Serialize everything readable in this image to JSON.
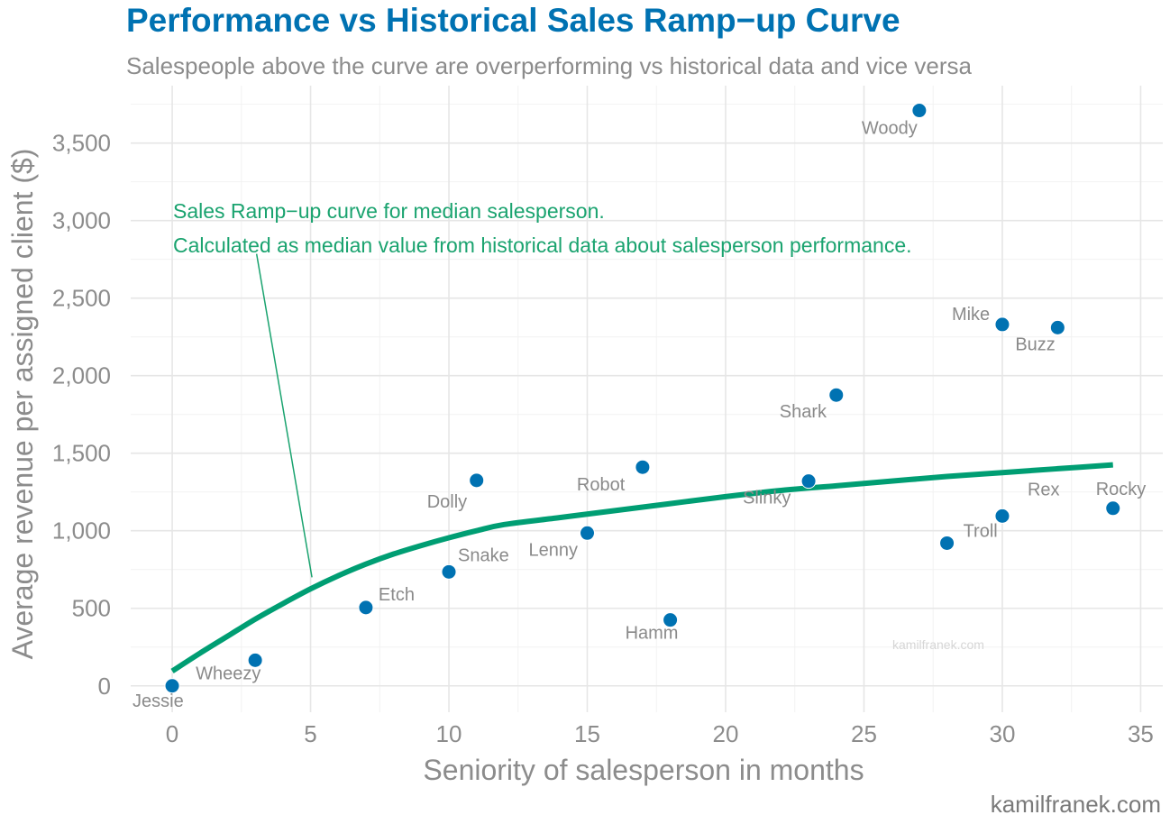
{
  "chart_data": {
    "type": "scatter",
    "title": "Performance vs Historical Sales Ramp−up Curve",
    "subtitle": "Salespeople above the curve are overperforming vs historical data and vice versa",
    "xlabel": "Seniority of salesperson in months",
    "ylabel": "Average revenue per assigned client ($)",
    "xlim": [
      -1.5,
      35.8
    ],
    "ylim": [
      -170,
      3870
    ],
    "x_ticks": [
      0,
      5,
      10,
      15,
      20,
      25,
      30,
      35
    ],
    "x_tick_labels": [
      "0",
      "5",
      "10",
      "15",
      "20",
      "25",
      "30",
      "35"
    ],
    "y_ticks": [
      0,
      500,
      1000,
      1500,
      2000,
      2500,
      3000,
      3500
    ],
    "y_tick_labels": [
      "0",
      "500",
      "1,000",
      "1,500",
      "2,000",
      "2,500",
      "3,000",
      "3,500"
    ],
    "grid": true,
    "colors": {
      "title": "#0072B2",
      "points": "#0072B2",
      "curve": "#009E73",
      "annotation": "#1aa36f",
      "text_gray": "#8c8c8c"
    },
    "points": [
      {
        "name": "Jessie",
        "x": 0,
        "y": 0
      },
      {
        "name": "Wheezy",
        "x": 3,
        "y": 165
      },
      {
        "name": "Etch",
        "x": 7,
        "y": 505
      },
      {
        "name": "Snake",
        "x": 10,
        "y": 735
      },
      {
        "name": "Dolly",
        "x": 11,
        "y": 1325
      },
      {
        "name": "Lenny",
        "x": 15,
        "y": 985
      },
      {
        "name": "Robot",
        "x": 17,
        "y": 1410
      },
      {
        "name": "Hamm",
        "x": 18,
        "y": 425
      },
      {
        "name": "Slinky",
        "x": 23,
        "y": 1320
      },
      {
        "name": "Shark",
        "x": 24,
        "y": 1875
      },
      {
        "name": "Woody",
        "x": 27,
        "y": 3710
      },
      {
        "name": "Troll",
        "x": 28,
        "y": 920
      },
      {
        "name": "Mike",
        "x": 30,
        "y": 2330
      },
      {
        "name": "Rex",
        "x": 30,
        "y": 1095
      },
      {
        "name": "Buzz",
        "x": 32,
        "y": 2310
      },
      {
        "name": "Rocky",
        "x": 34,
        "y": 1145
      }
    ],
    "ramp_curve": {
      "x": [
        0,
        1,
        2,
        3,
        4,
        5,
        6,
        7,
        8,
        9,
        10,
        11,
        12,
        14,
        16,
        18,
        20,
        22,
        24,
        26,
        28,
        30,
        32,
        34
      ],
      "y": [
        95,
        210,
        320,
        430,
        530,
        625,
        710,
        785,
        850,
        905,
        955,
        1000,
        1040,
        1085,
        1130,
        1175,
        1220,
        1260,
        1290,
        1320,
        1350,
        1375,
        1400,
        1425
      ]
    },
    "annotation": {
      "lines": [
        "Sales Ramp−up curve for median salesperson.",
        "Calculated as median value from historical data about salesperson performance."
      ],
      "pointer_from": [
        3.05,
        2785
      ],
      "pointer_to": [
        5.05,
        700
      ]
    },
    "watermark": "kamilfranek.com"
  },
  "footer": {
    "credit": "kamilfranek.com"
  }
}
